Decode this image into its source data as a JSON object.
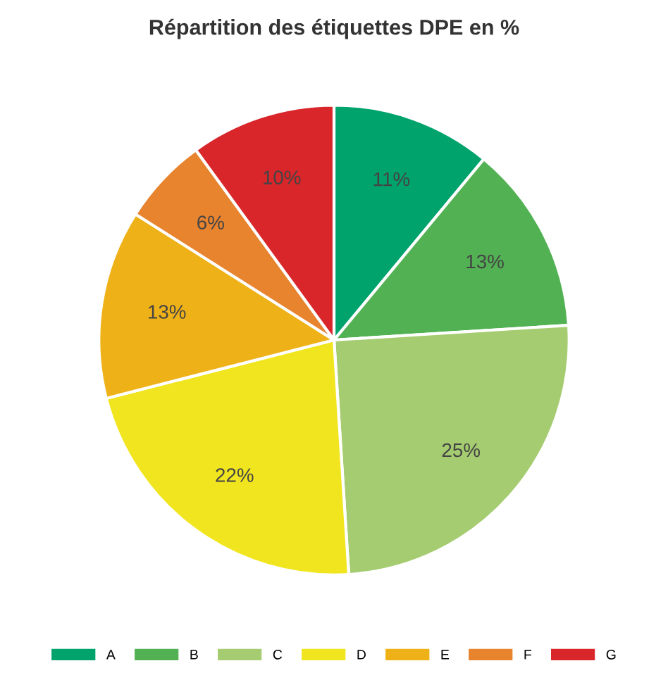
{
  "chart_data": {
    "type": "pie",
    "title": "Répartition des étiquettes DPE en %",
    "categories": [
      "A",
      "B",
      "C",
      "D",
      "E",
      "F",
      "G"
    ],
    "values": [
      11,
      13,
      25,
      22,
      13,
      6,
      10
    ],
    "value_labels": [
      "11%",
      "13%",
      "25%",
      "22%",
      "13%",
      "6%",
      "10%"
    ],
    "colors": [
      "#00a36c",
      "#52b153",
      "#a5cc70",
      "#f0e51e",
      "#efb118",
      "#e8832e",
      "#d8262a"
    ],
    "legend": "bottom"
  }
}
